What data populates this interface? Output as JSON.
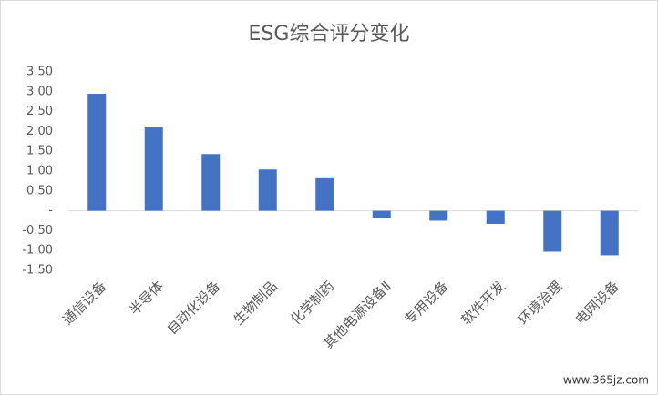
{
  "chart_data": {
    "type": "bar",
    "title": "ESG综合评分变化",
    "categories": [
      "通信设备",
      "半导体",
      "自动化设备",
      "生物制品",
      "化学制药",
      "其他电源设备Ⅱ",
      "专用设备",
      "软件开发",
      "环境治理",
      "电网设备"
    ],
    "values": [
      2.95,
      2.12,
      1.43,
      1.04,
      0.82,
      -0.17,
      -0.25,
      -0.33,
      -1.03,
      -1.12
    ],
    "color": "#4472c4",
    "ylim": [
      -1.5,
      3.5
    ],
    "yticks": [
      {
        "value": 3.5,
        "label": "3.50"
      },
      {
        "value": 3,
        "label": "3.00"
      },
      {
        "value": 2.5,
        "label": "2.50"
      },
      {
        "value": 2,
        "label": "2.00"
      },
      {
        "value": 1.5,
        "label": "1.50"
      },
      {
        "value": 1,
        "label": "1.00"
      },
      {
        "value": 0.5,
        "label": "0.50"
      },
      {
        "value": 0,
        "label": "-"
      },
      {
        "value": -0.5,
        "label": "-0.50"
      },
      {
        "value": -1,
        "label": "-1.00"
      },
      {
        "value": -1.5,
        "label": "-1.50"
      }
    ],
    "grid": false,
    "watermark": "www.365jz.com"
  }
}
